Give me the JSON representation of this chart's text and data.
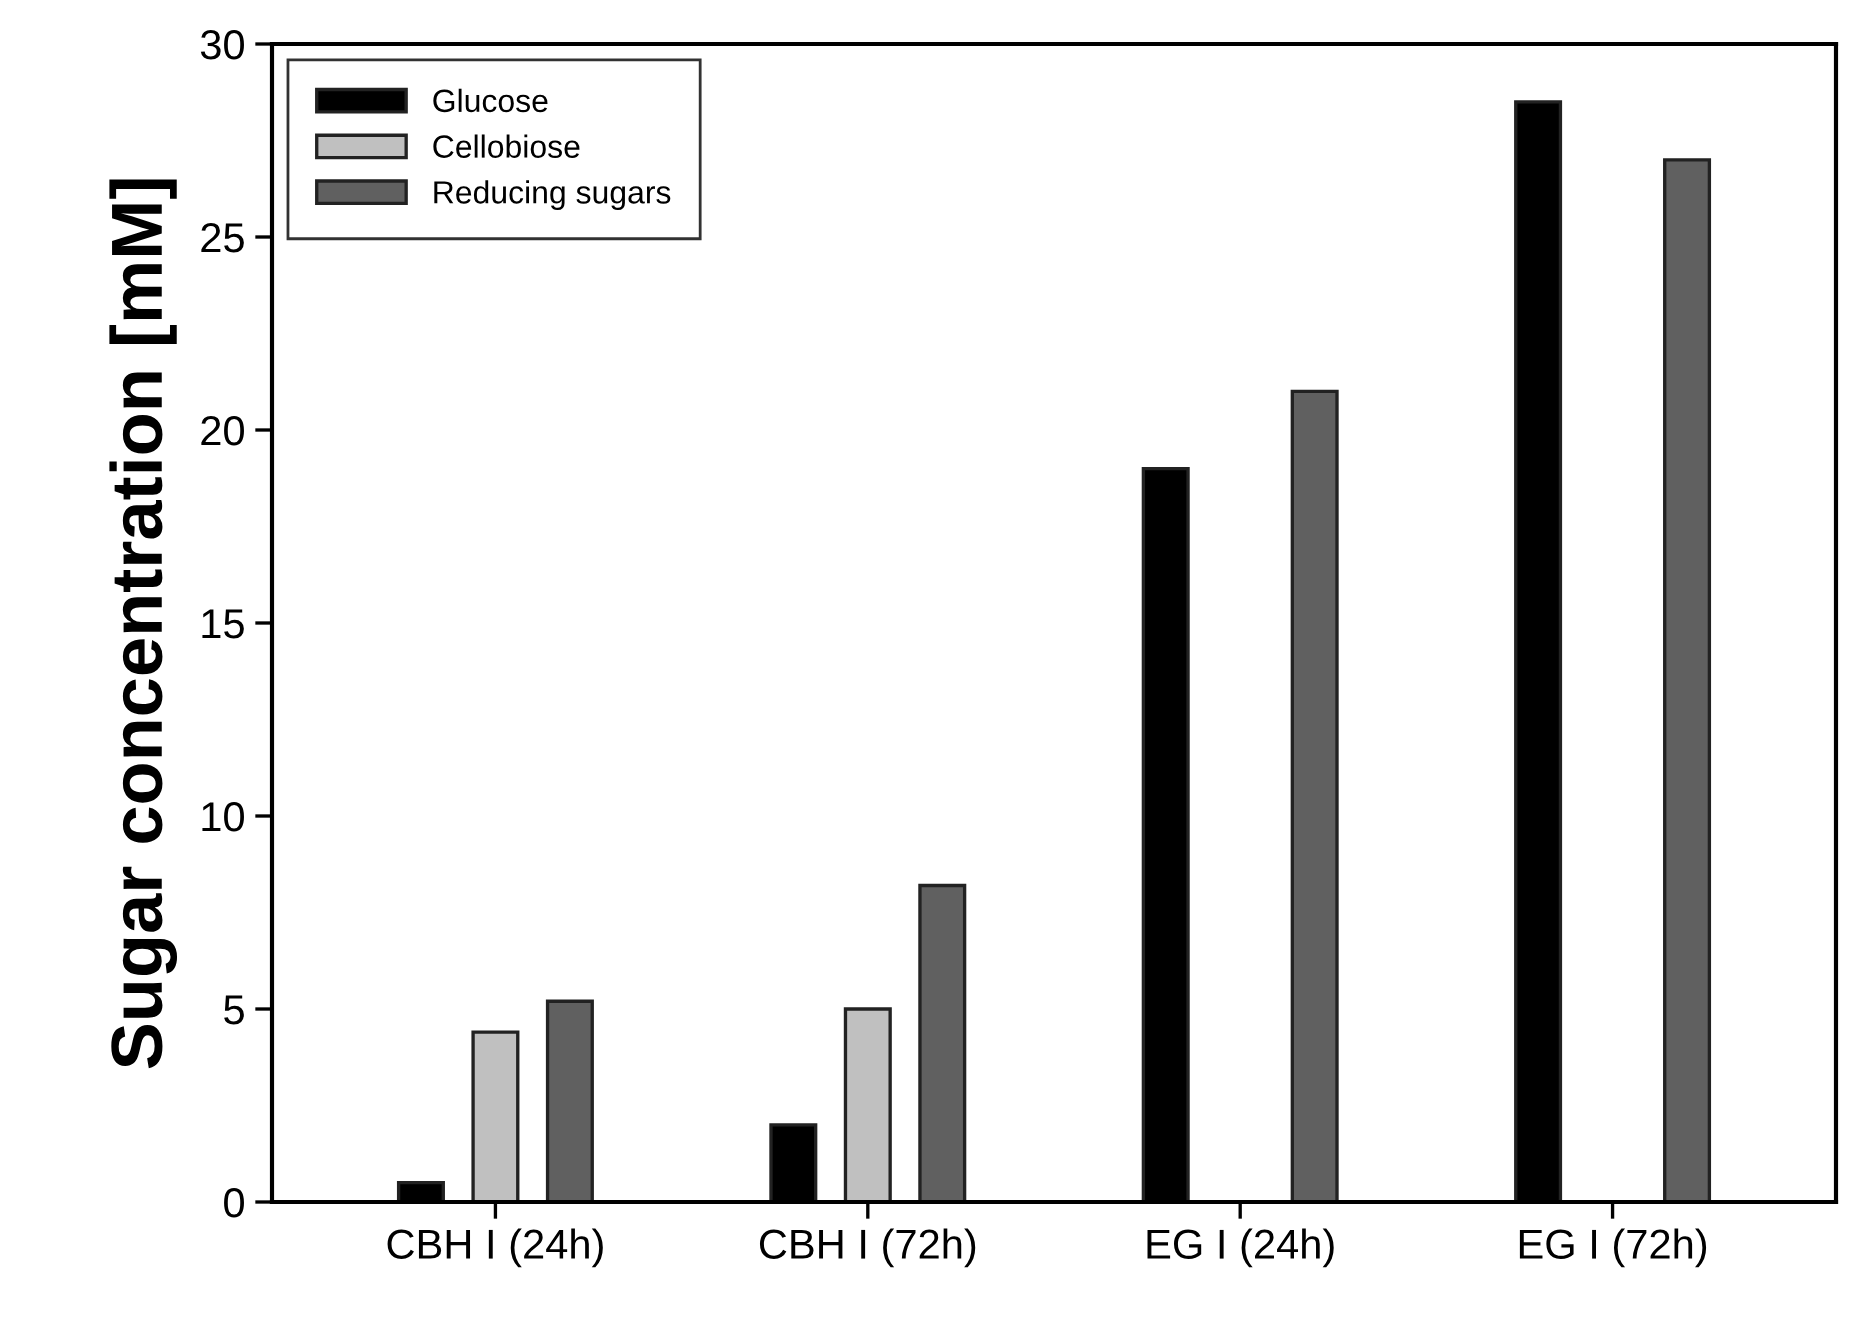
{
  "chart_data": {
    "type": "bar",
    "ylabel": "Sugar concentration [mM]",
    "categories": [
      "CBH I (24h)",
      "CBH I (72h)",
      "EG I (24h)",
      "EG I (72h)"
    ],
    "series": [
      {
        "name": "Glucose",
        "color": "#000000",
        "values": [
          0.5,
          2.0,
          19.0,
          28.5
        ]
      },
      {
        "name": "Cellobiose",
        "color": "#c0c0c0",
        "values": [
          4.4,
          5.0,
          null,
          null
        ]
      },
      {
        "name": "Reducing sugars",
        "color": "#606060",
        "values": [
          5.2,
          8.2,
          21.0,
          27.0
        ]
      }
    ],
    "ylim": [
      0,
      30
    ],
    "yticks": [
      0,
      5,
      10,
      15,
      20,
      25,
      30
    ],
    "grid": false,
    "legend": "top left"
  }
}
